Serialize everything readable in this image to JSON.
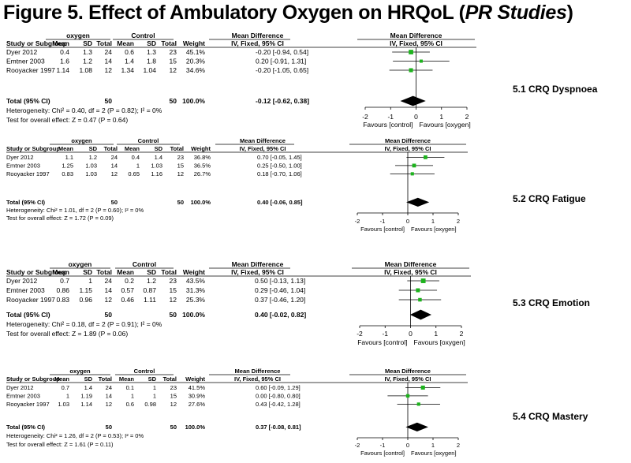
{
  "title": {
    "prefix": "Figure 5. Effect of Ambulatory Oxygen on HRQoL (",
    "italic": "PR Studies",
    "suffix": ")"
  },
  "headers": {
    "group1": "oxygen",
    "group2": "Control",
    "md": "Mean Difference",
    "md_plot": "Mean Difference",
    "study": "Study or Subgroup",
    "mean": "Mean",
    "sd": "SD",
    "total": "Total",
    "weight": "Weight",
    "method": "IV, Fixed, 95% CI",
    "method_plot": "IV, Fixed, 95% CI"
  },
  "axis": {
    "ticks": [
      "-2",
      "-1",
      "0",
      "1",
      "2"
    ],
    "favours_left": "Favours [control]",
    "favours_right": "Favours [oxygen]"
  },
  "colors": {
    "box": "#1db31d",
    "diamond": "#000000",
    "line": "#000000"
  },
  "chart_data": [
    {
      "type": "forest",
      "label": "5.1 CRQ Dyspnoea",
      "xlim": [
        -2,
        2
      ],
      "studies": [
        {
          "name": "Dyer 2012",
          "mean1": "0.4",
          "sd1": "1.3",
          "n1": "24",
          "mean2": "0.6",
          "sd2": "1.3",
          "n2": "23",
          "weight": "45.1%",
          "ci_text": "-0.20 [-0.94, 0.54]",
          "md": -0.2,
          "lo": -0.94,
          "hi": 0.54,
          "w": 45.1
        },
        {
          "name": "Emtner 2003",
          "mean1": "1.6",
          "sd1": "1.2",
          "n1": "14",
          "mean2": "1.4",
          "sd2": "1.8",
          "n2": "15",
          "weight": "20.3%",
          "ci_text": "0.20 [-0.91, 1.31]",
          "md": 0.2,
          "lo": -0.91,
          "hi": 1.31,
          "w": 20.3
        },
        {
          "name": "Rooyacker 1997",
          "mean1": "1.14",
          "sd1": "1.08",
          "n1": "12",
          "mean2": "1.34",
          "sd2": "1.04",
          "n2": "12",
          "weight": "34.6%",
          "ci_text": "-0.20 [-1.05, 0.65]",
          "md": -0.2,
          "lo": -1.05,
          "hi": 0.65,
          "w": 34.6
        }
      ],
      "total": {
        "label": "Total (95% CI)",
        "n1": "50",
        "n2": "50",
        "weight": "100.0%",
        "ci_text": "-0.12 [-0.62, 0.38]",
        "md": -0.12,
        "lo": -0.62,
        "hi": 0.38
      },
      "heterogeneity": "Heterogeneity: Chi² = 0.40, df = 2 (P = 0.82); I² = 0%",
      "overall": "Test for overall effect: Z = 0.47 (P = 0.64)"
    },
    {
      "type": "forest",
      "label": "5.2 CRQ Fatigue",
      "xlim": [
        -2,
        2
      ],
      "studies": [
        {
          "name": "Dyer 2012",
          "mean1": "1.1",
          "sd1": "1.2",
          "n1": "24",
          "mean2": "0.4",
          "sd2": "1.4",
          "n2": "23",
          "weight": "36.8%",
          "ci_text": "0.70 [-0.05, 1.45]",
          "md": 0.7,
          "lo": -0.05,
          "hi": 1.45,
          "w": 36.8
        },
        {
          "name": "Emtner 2003",
          "mean1": "1.25",
          "sd1": "1.03",
          "n1": "14",
          "mean2": "1",
          "sd2": "1.03",
          "n2": "15",
          "weight": "36.5%",
          "ci_text": "0.25 [-0.50, 1.00]",
          "md": 0.25,
          "lo": -0.5,
          "hi": 1.0,
          "w": 36.5
        },
        {
          "name": "Rooyacker 1997",
          "mean1": "0.83",
          "sd1": "1.03",
          "n1": "12",
          "mean2": "0.65",
          "sd2": "1.16",
          "n2": "12",
          "weight": "26.7%",
          "ci_text": "0.18 [-0.70, 1.06]",
          "md": 0.18,
          "lo": -0.7,
          "hi": 1.06,
          "w": 26.7
        }
      ],
      "total": {
        "label": "Total (95% CI)",
        "n1": "50",
        "n2": "50",
        "weight": "100.0%",
        "ci_text": "0.40 [-0.06, 0.85]",
        "md": 0.4,
        "lo": -0.06,
        "hi": 0.85
      },
      "heterogeneity": "Heterogeneity: Chi² = 1.01, df = 2 (P = 0.60); I² = 0%",
      "overall": "Test for overall effect: Z = 1.72 (P = 0.09)"
    },
    {
      "type": "forest",
      "label": "5.3 CRQ Emotion",
      "xlim": [
        -2,
        2
      ],
      "studies": [
        {
          "name": "Dyer 2012",
          "mean1": "0.7",
          "sd1": "1",
          "n1": "24",
          "mean2": "0.2",
          "sd2": "1.2",
          "n2": "23",
          "weight": "43.5%",
          "ci_text": "0.50 [-0.13, 1.13]",
          "md": 0.5,
          "lo": -0.13,
          "hi": 1.13,
          "w": 43.5
        },
        {
          "name": "Emtner 2003",
          "mean1": "0.86",
          "sd1": "1.15",
          "n1": "14",
          "mean2": "0.57",
          "sd2": "0.87",
          "n2": "15",
          "weight": "31.3%",
          "ci_text": "0.29 [-0.46, 1.04]",
          "md": 0.29,
          "lo": -0.46,
          "hi": 1.04,
          "w": 31.3
        },
        {
          "name": "Rooyacker 1997",
          "mean1": "0.83",
          "sd1": "0.96",
          "n1": "12",
          "mean2": "0.46",
          "sd2": "1.11",
          "n2": "12",
          "weight": "25.3%",
          "ci_text": "0.37 [-0.46, 1.20]",
          "md": 0.37,
          "lo": -0.46,
          "hi": 1.2,
          "w": 25.3
        }
      ],
      "total": {
        "label": "Total (95% CI)",
        "n1": "50",
        "n2": "50",
        "weight": "100.0%",
        "ci_text": "0.40 [-0.02, 0.82]",
        "md": 0.4,
        "lo": -0.02,
        "hi": 0.82
      },
      "heterogeneity": "Heterogeneity: Chi² = 0.18, df = 2 (P = 0.91); I² = 0%",
      "overall": "Test for overall effect: Z = 1.89 (P = 0.06)"
    },
    {
      "type": "forest",
      "label": "5.4 CRQ Mastery",
      "xlim": [
        -2,
        2
      ],
      "studies": [
        {
          "name": "Dyer 2012",
          "mean1": "0.7",
          "sd1": "1.4",
          "n1": "24",
          "mean2": "0.1",
          "sd2": "1",
          "n2": "23",
          "weight": "41.5%",
          "ci_text": "0.60 [-0.09, 1.29]",
          "md": 0.6,
          "lo": -0.09,
          "hi": 1.29,
          "w": 41.5
        },
        {
          "name": "Emtner 2003",
          "mean1": "1",
          "sd1": "1.19",
          "n1": "14",
          "mean2": "1",
          "sd2": "1",
          "n2": "15",
          "weight": "30.9%",
          "ci_text": "0.00 [-0.80, 0.80]",
          "md": 0.0,
          "lo": -0.8,
          "hi": 0.8,
          "w": 30.9
        },
        {
          "name": "Rooyacker 1997",
          "mean1": "1.03",
          "sd1": "1.14",
          "n1": "12",
          "mean2": "0.6",
          "sd2": "0.98",
          "n2": "12",
          "weight": "27.6%",
          "ci_text": "0.43 [-0.42, 1.28]",
          "md": 0.43,
          "lo": -0.42,
          "hi": 1.28,
          "w": 27.6
        }
      ],
      "total": {
        "label": "Total (95% CI)",
        "n1": "50",
        "n2": "50",
        "weight": "100.0%",
        "ci_text": "0.37 [-0.08, 0.81]",
        "md": 0.37,
        "lo": -0.08,
        "hi": 0.81
      },
      "heterogeneity": "Heterogeneity: Chi² = 1.26, df = 2 (P = 0.53); I² = 0%",
      "overall": "Test for overall effect: Z = 1.61 (P = 0.11)"
    }
  ]
}
